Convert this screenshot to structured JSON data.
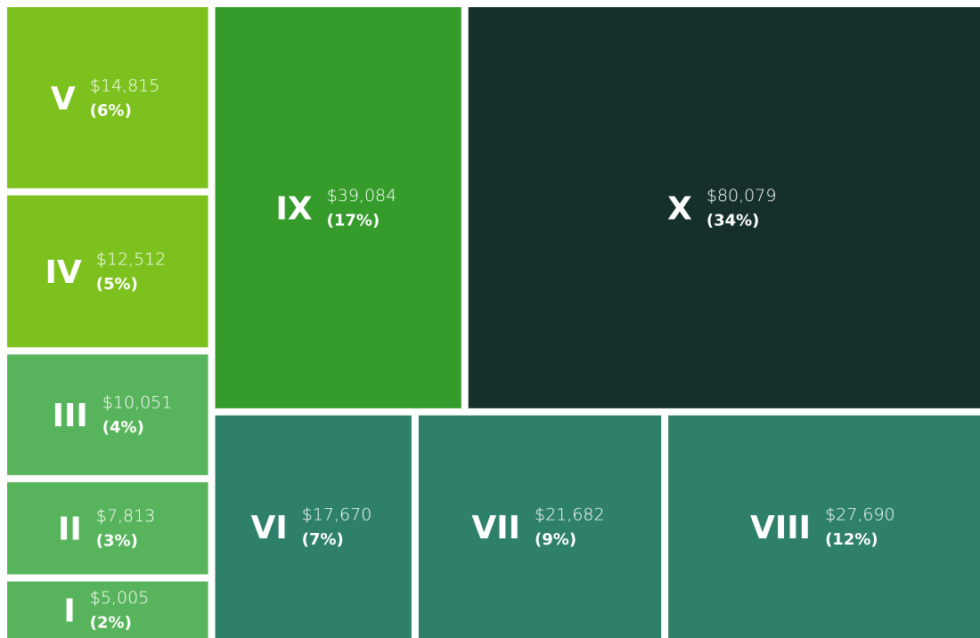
{
  "chart_data": {
    "type": "treemap",
    "categories": [
      "I",
      "II",
      "III",
      "IV",
      "V",
      "VI",
      "VII",
      "VIII",
      "IX",
      "X"
    ],
    "values": [
      5005,
      7813,
      10051,
      12512,
      14815,
      17670,
      21682,
      27690,
      39084,
      80079
    ],
    "value_labels": [
      "$5,005",
      "$7,813",
      "$10,051",
      "$12,512",
      "$14,815",
      "$17,670",
      "$21,682",
      "$27,690",
      "$39,084",
      "$80,079"
    ],
    "percents": [
      2,
      3,
      4,
      5,
      6,
      7,
      9,
      12,
      17,
      34
    ],
    "percent_labels": [
      "(2%)",
      "(3%)",
      "(4%)",
      "(5%)",
      "(6%)",
      "(7%)",
      "(9%)",
      "(12%)",
      "(17%)",
      "(34%)"
    ],
    "colors": [
      "#58b45c",
      "#58b45c",
      "#58b45c",
      "#7dc11f",
      "#7dc11f",
      "#2e806a",
      "#2e806a",
      "#2e806a",
      "#359b2b",
      "#15302b"
    ]
  }
}
